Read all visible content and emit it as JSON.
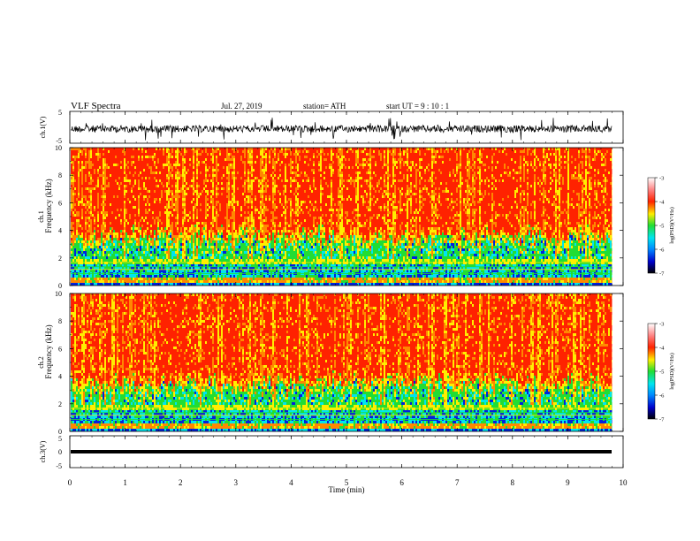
{
  "header": {
    "title": "VLF  Spectra",
    "date": "Jul.  27,  2019",
    "station": "station= ATH",
    "start": "start  UT  =    9  : 10 : 1"
  },
  "chart_data": [
    {
      "type": "line",
      "panel": "ch1-waveform",
      "ylabel": "ch.1(V)",
      "ylim": [
        -5,
        5
      ],
      "ytick_labels": [
        "5",
        "-5"
      ],
      "x_range_min": [
        0,
        9.8
      ]
    },
    {
      "type": "heatmap",
      "panel": "ch1-spectrogram",
      "ylabel_top": "ch.1",
      "ylabel": "Frequency  (kHz)",
      "ylim": [
        0,
        10
      ],
      "ytick_labels": [
        "0",
        "2",
        "4",
        "6",
        "8",
        "10"
      ],
      "colorbar": {
        "label": "log(PSD)(V²/Hz)",
        "range": [
          -7,
          -3
        ],
        "tick_labels": [
          "-3",
          "-4",
          "-5",
          "-6",
          "-7"
        ]
      }
    },
    {
      "type": "heatmap",
      "panel": "ch2-spectrogram",
      "ylabel_top": "ch.2",
      "ylabel": "Frequency  (kHz)",
      "ylim": [
        0,
        10
      ],
      "ytick_labels": [
        "0",
        "2",
        "4",
        "6",
        "8",
        "10"
      ],
      "colorbar": {
        "label": "log(PSD)(V²/Hz)",
        "range": [
          -7,
          -3
        ],
        "tick_labels": [
          "-3",
          "-4",
          "-5",
          "-6",
          "-7"
        ]
      }
    },
    {
      "type": "line",
      "panel": "ch3-waveform",
      "ylabel": "ch.3(V)",
      "ylim": [
        -5,
        5
      ],
      "ytick_labels": [
        "5",
        "0",
        "-5"
      ],
      "constant_value": 0
    }
  ],
  "xaxis": {
    "label": "Time  (min)",
    "range": [
      0,
      10
    ],
    "tick_labels": [
      "0",
      "1",
      "2",
      "3",
      "4",
      "5",
      "6",
      "7",
      "8",
      "9",
      "10"
    ]
  },
  "colors": {
    "red": "#ff2200",
    "orange": "#ff8800",
    "yellow": "#ffee00",
    "green": "#22dd33",
    "cyan": "#00e5ee",
    "blue": "#0022dd",
    "black": "#000000"
  }
}
